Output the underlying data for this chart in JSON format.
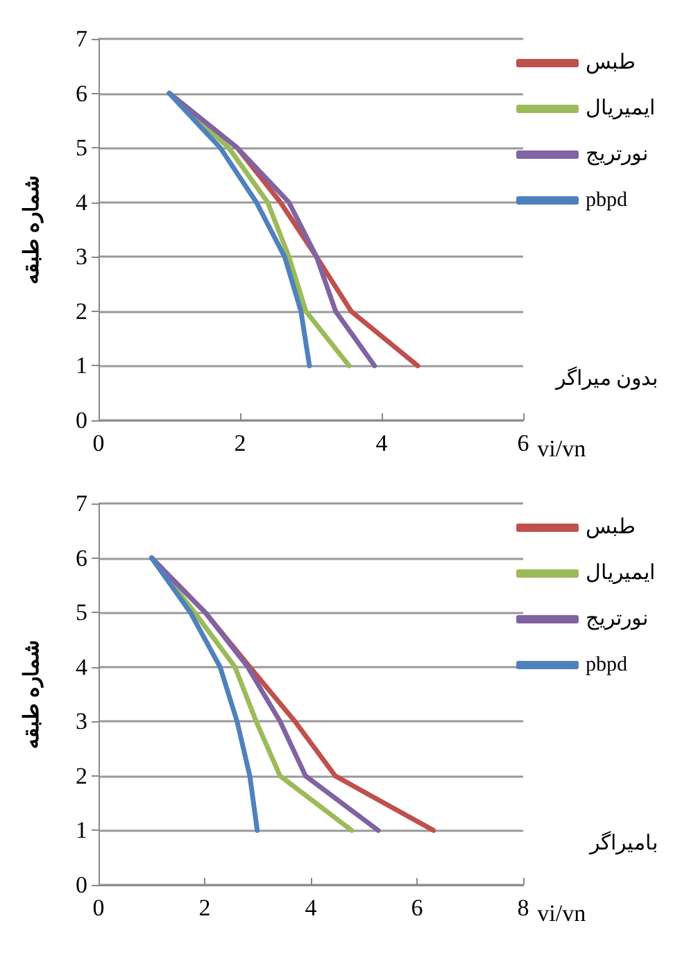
{
  "chart_data": [
    {
      "type": "line",
      "ylabel": "شماره طبقه",
      "xlabel": "vi/vn",
      "annotations": [
        "بدون میراگر"
      ],
      "xlim": [
        0,
        6
      ],
      "xticks": [
        0,
        2,
        4,
        6
      ],
      "ylim": [
        0,
        7
      ],
      "yticks": [
        0,
        1,
        2,
        3,
        4,
        5,
        6,
        7
      ],
      "grid": "y",
      "legend": "right",
      "marker": "none",
      "line_style": "solid",
      "series": [
        {
          "name": "طبس",
          "color": "#c0504d",
          "x": [
            4.51,
            3.57,
            3.08,
            2.57,
            1.96,
            1.0
          ],
          "values": [
            1,
            2,
            3,
            4,
            5,
            6
          ]
        },
        {
          "name": "ایمیریال",
          "color": "#9bbb59",
          "x": [
            3.54,
            2.93,
            2.69,
            2.39,
            1.84,
            1.0
          ],
          "values": [
            1,
            2,
            3,
            4,
            5,
            6
          ]
        },
        {
          "name": "نورتریج",
          "color": "#8064a2",
          "x": [
            3.9,
            3.35,
            3.08,
            2.69,
            1.96,
            1.0
          ],
          "values": [
            1,
            2,
            3,
            4,
            5,
            6
          ]
        },
        {
          "name": "pbpd",
          "color": "#4f81bd",
          "x": [
            2.98,
            2.86,
            2.63,
            2.23,
            1.72,
            1.0
          ],
          "values": [
            1,
            2,
            3,
            4,
            5,
            6
          ]
        }
      ]
    },
    {
      "type": "line",
      "ylabel": "شماره طبقه",
      "xlabel": "vi/vn",
      "annotations": [
        "بامیراگر"
      ],
      "xlim": [
        0,
        8
      ],
      "xticks": [
        0,
        2,
        4,
        6,
        8
      ],
      "ylim": [
        0,
        7
      ],
      "yticks": [
        0,
        1,
        2,
        3,
        4,
        5,
        6,
        7
      ],
      "grid": "y",
      "legend": "right",
      "marker": "none",
      "line_style": "solid",
      "series": [
        {
          "name": "طبس",
          "color": "#c0504d",
          "x": [
            6.31,
            4.46,
            3.7,
            2.85,
            2.01,
            1.0
          ],
          "values": [
            1,
            2,
            3,
            4,
            5,
            6
          ]
        },
        {
          "name": "ایمیریال",
          "color": "#9bbb59",
          "x": [
            4.77,
            3.42,
            2.97,
            2.57,
            1.81,
            1.0
          ],
          "values": [
            1,
            2,
            3,
            4,
            5,
            6
          ]
        },
        {
          "name": "نورتریج",
          "color": "#8064a2",
          "x": [
            5.27,
            3.9,
            3.42,
            2.81,
            2.01,
            1.0
          ],
          "values": [
            1,
            2,
            3,
            4,
            5,
            6
          ]
        },
        {
          "name": "pbpd",
          "color": "#4f81bd",
          "x": [
            2.99,
            2.85,
            2.61,
            2.29,
            1.73,
            1.0
          ],
          "values": [
            1,
            2,
            3,
            4,
            5,
            6
          ]
        }
      ]
    }
  ]
}
